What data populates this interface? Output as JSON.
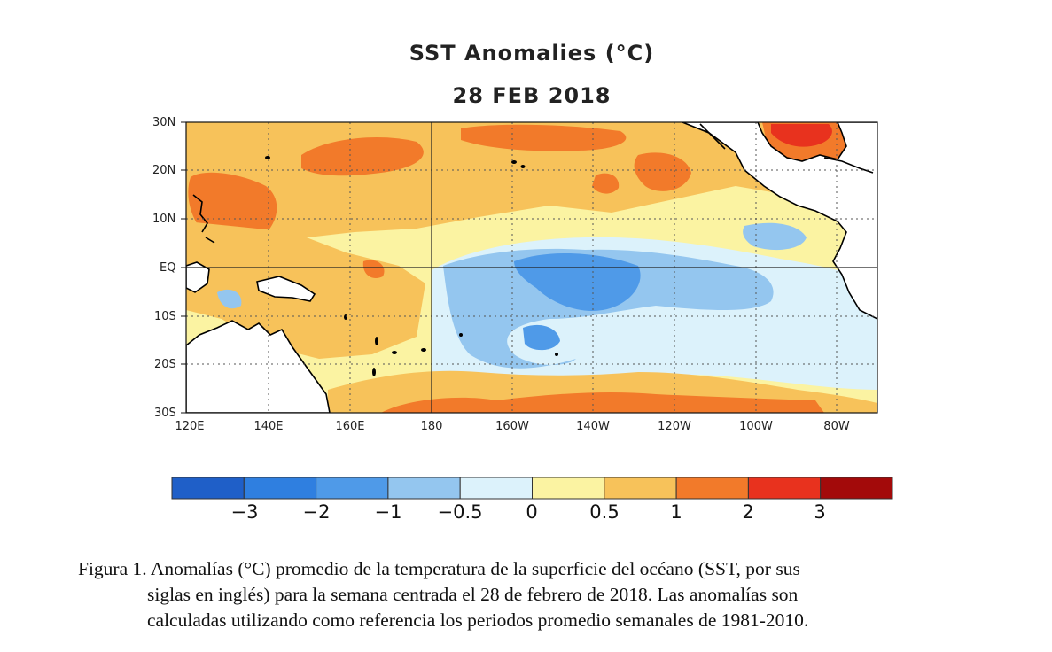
{
  "title": "SST Anomalies (°C)",
  "date": "28 FEB 2018",
  "lat_labels": [
    "30N",
    "20N",
    "10N",
    "EQ",
    "10S",
    "20S",
    "30S"
  ],
  "lon_labels": [
    "120E",
    "140E",
    "160E",
    "180",
    "160W",
    "140W",
    "120W",
    "100W",
    "80W"
  ],
  "colorbar": {
    "colors": [
      "#1f5fc8",
      "#2f7fe0",
      "#4f9ae8",
      "#94c6ef",
      "#dcf2fb",
      "#fbf3a2",
      "#f7c25a",
      "#f27a2a",
      "#e8321e",
      "#a30a0a"
    ],
    "labels": [
      "−3",
      "−2",
      "−1",
      "−0.5",
      "0",
      "0.5",
      "1",
      "2",
      "3"
    ]
  },
  "caption": {
    "line1": "Figura 1. Anomalías (°C) promedio de la temperatura de la superficie del océano (SST, por sus",
    "line2": "siglas en inglés) para la semana centrada el 28 de febrero de 2018. Las anomalías son",
    "line3": "calculadas utilizando como referencia los periodos promedio semanales de 1981-2010."
  },
  "map_colors": {
    "ocean_base": "#fbf3a2",
    "land": "#ffffff",
    "coast": "#000000"
  }
}
